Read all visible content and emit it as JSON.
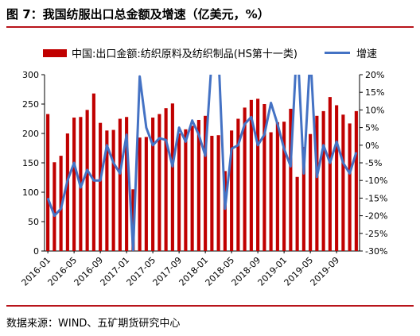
{
  "header": {
    "title": "图 7：我国纺服出口总金额及增速（亿美元，%）"
  },
  "footer": {
    "source": "数据来源：WIND、五矿期货研究中心"
  },
  "colors": {
    "bar": "#c00000",
    "line": "#4472c4",
    "rule": "#b8141b"
  },
  "chart_data": {
    "type": "bar",
    "title": "",
    "xlabel": "",
    "ylabel": "",
    "legend_position": "top",
    "grid": false,
    "ylim": [
      0,
      300
    ],
    "y2lim": [
      -30,
      20
    ],
    "y_ticks": [
      "0",
      "50",
      "100",
      "150",
      "200",
      "250",
      "300"
    ],
    "y2_ticks": [
      "-30%",
      "-25%",
      "-20%",
      "-15%",
      "-10%",
      "-5%",
      "0%",
      "5%",
      "10%",
      "15%",
      "20%"
    ],
    "x_tick_labels": [
      "2016-01",
      "2016-05",
      "2016-09",
      "2017-01",
      "2017-05",
      "2017-09",
      "2018-01",
      "2018-05",
      "2018-09",
      "2019-01",
      "2019-05",
      "2019-09"
    ],
    "categories": [
      "2016-01",
      "2016-02",
      "2016-03",
      "2016-04",
      "2016-05",
      "2016-06",
      "2016-07",
      "2016-08",
      "2016-09",
      "2016-10",
      "2016-11",
      "2016-12",
      "2017-01",
      "2017-02",
      "2017-03",
      "2017-04",
      "2017-05",
      "2017-06",
      "2017-07",
      "2017-08",
      "2017-09",
      "2017-10",
      "2017-11",
      "2017-12",
      "2018-01",
      "2018-02",
      "2018-03",
      "2018-04",
      "2018-05",
      "2018-06",
      "2018-07",
      "2018-08",
      "2018-09",
      "2018-10",
      "2018-11",
      "2018-12",
      "2019-01",
      "2019-02",
      "2019-03",
      "2019-04",
      "2019-05",
      "2019-06",
      "2019-07",
      "2019-08",
      "2019-09",
      "2019-10",
      "2019-11",
      "2019-12"
    ],
    "series": [
      {
        "name": "中国:出口金额:纺织原料及纺织制品(HS第十一类)",
        "type": "bar",
        "axis": "left",
        "values": [
          233,
          151,
          162,
          200,
          227,
          228,
          240,
          268,
          218,
          205,
          206,
          225,
          228,
          105,
          193,
          194,
          227,
          233,
          243,
          251,
          200,
          207,
          213,
          223,
          230,
          196,
          197,
          136,
          205,
          225,
          244,
          257,
          259,
          250,
          202,
          219,
          220,
          242,
          126,
          177,
          199,
          230,
          238,
          262,
          248,
          232,
          217,
          238
        ]
      },
      {
        "name": "增速",
        "type": "line",
        "axis": "right",
        "values": [
          -15,
          -20,
          -18,
          -10,
          -5,
          -12,
          -7,
          -10,
          -10,
          0,
          -5,
          -8,
          3,
          -30,
          19.5,
          5,
          0,
          2,
          1.5,
          -6,
          5,
          1,
          7,
          3,
          -3,
          25,
          26,
          -18,
          -1,
          0,
          6,
          8,
          0,
          3,
          12,
          6,
          -1,
          -6,
          30,
          -8,
          26,
          -9,
          0,
          -5,
          1,
          -5,
          -8,
          -2
        ]
      }
    ]
  }
}
